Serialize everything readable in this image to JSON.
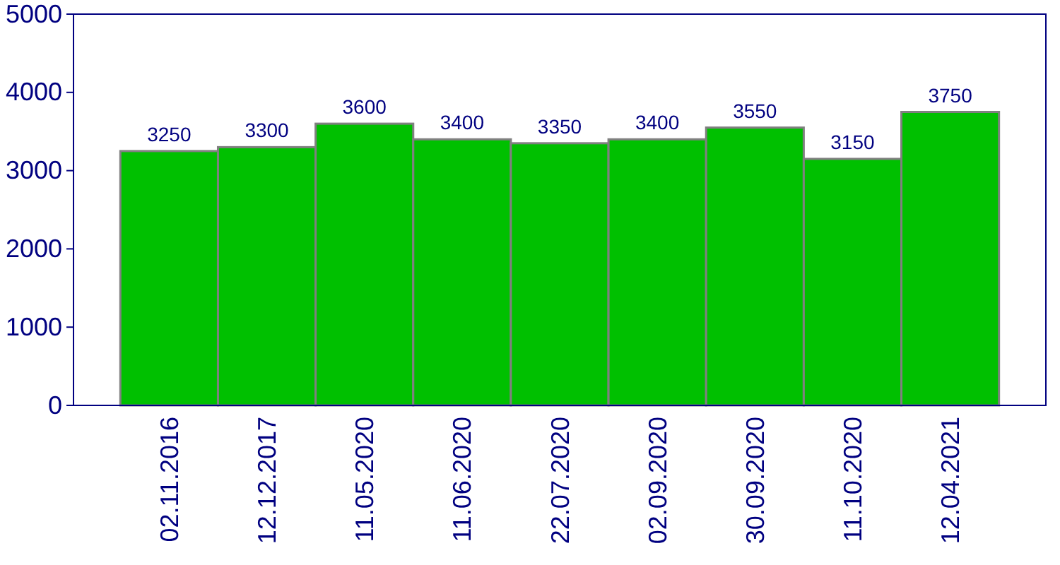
{
  "chart_data": {
    "type": "bar",
    "categories": [
      "02.11.2016",
      "12.12.2017",
      "11.05.2020",
      "11.06.2020",
      "22.07.2020",
      "02.09.2020",
      "30.09.2020",
      "11.10.2020",
      "12.04.2021"
    ],
    "values": [
      3250,
      3300,
      3600,
      3400,
      3350,
      3400,
      3550,
      3150,
      3750
    ],
    "color": "#00c000",
    "ylim": [
      0,
      5000
    ],
    "yticks": [
      0,
      1000,
      2000,
      3000,
      4000,
      5000
    ],
    "grid": false,
    "data_labels": true
  }
}
